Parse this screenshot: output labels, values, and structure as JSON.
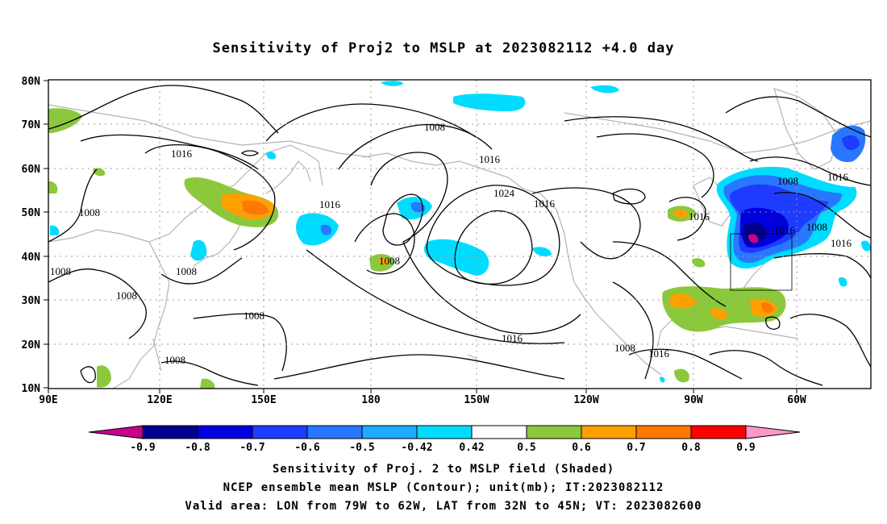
{
  "title": "Sensitivity of Proj2 to MSLP at 2023082112 +4.0 day",
  "map": {
    "lon_labels": [
      "90E",
      "120E",
      "150E",
      "180",
      "150W",
      "120W",
      "90W",
      "60W"
    ],
    "lat_labels": [
      "80N",
      "70N",
      "60N",
      "50N",
      "40N",
      "30N",
      "20N",
      "10N"
    ],
    "contour_labels": [
      "1008",
      "1016",
      "1016",
      "1008",
      "1008",
      "1008",
      "1008",
      "1008",
      "1008",
      "1016",
      "1008",
      "1008",
      "1016",
      "1024",
      "1016",
      "1016",
      "1016",
      "1008",
      "1016",
      "1008",
      "1016",
      "1016"
    ],
    "valid_box": {
      "lon_from": "79W",
      "lon_to": "62W",
      "lat_from": "32N",
      "lat_to": "45N"
    }
  },
  "colorbar": {
    "labels": [
      "-0.9",
      "-0.8",
      "-0.7",
      "-0.6",
      "-0.5",
      "-0.42",
      "0.42",
      "0.5",
      "0.6",
      "0.7",
      "0.8",
      "0.9"
    ],
    "colors": [
      "#c8008c",
      "#00008c",
      "#0000dc",
      "#1e3cff",
      "#2878ff",
      "#1eaaff",
      "#00dcff",
      "#ffffff",
      "#8cc83c",
      "#ffa000",
      "#ff7800",
      "#ff3c00",
      "#ff0000",
      "#ff96c8"
    ]
  },
  "captions": {
    "line1": "Sensitivity of Proj. 2 to MSLP field (Shaded)",
    "line2": "NCEP ensemble mean MSLP (Contour); unit(mb); IT:2023082112",
    "line3": "Valid area: LON from 79W to 62W, LAT from 32N to 45N; VT: 2023082600"
  },
  "colors": {
    "neg_strong": "#00008c",
    "neg_mid": "#1e3cff",
    "neg_weak": "#00dcff",
    "pos_weak": "#8cc83c",
    "pos_mid": "#ffa000",
    "pos_strong": "#ff3c00",
    "coast": "#b4b4b4"
  }
}
